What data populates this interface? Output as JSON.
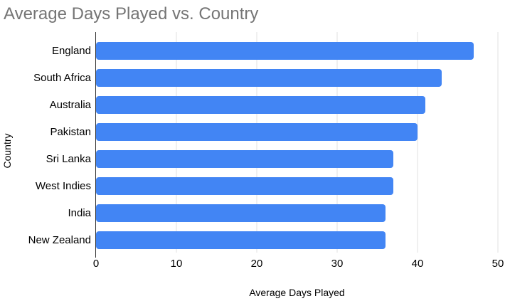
{
  "page": {
    "background": "#ffffff"
  },
  "chart": {
    "title_color": "#757575",
    "bar_color": "#4285f4",
    "gridline_color": "#e0e0e0",
    "axis_line_color": "#333333",
    "label_color": "#000000"
  },
  "chart_data": {
    "type": "bar",
    "orientation": "horizontal",
    "title": "Average Days Played vs. Country",
    "xlabel": "Average Days Played",
    "ylabel": "Country",
    "categories": [
      "England",
      "South Africa",
      "Australia",
      "Pakistan",
      "Sri Lanka",
      "West Indies",
      "India",
      "New Zealand"
    ],
    "values": [
      47,
      43,
      41,
      40,
      37,
      37,
      36,
      36
    ],
    "xlim": [
      0,
      50
    ],
    "xticks": [
      0,
      10,
      20,
      30,
      40,
      50
    ],
    "grid": true,
    "legend_position": "none"
  }
}
